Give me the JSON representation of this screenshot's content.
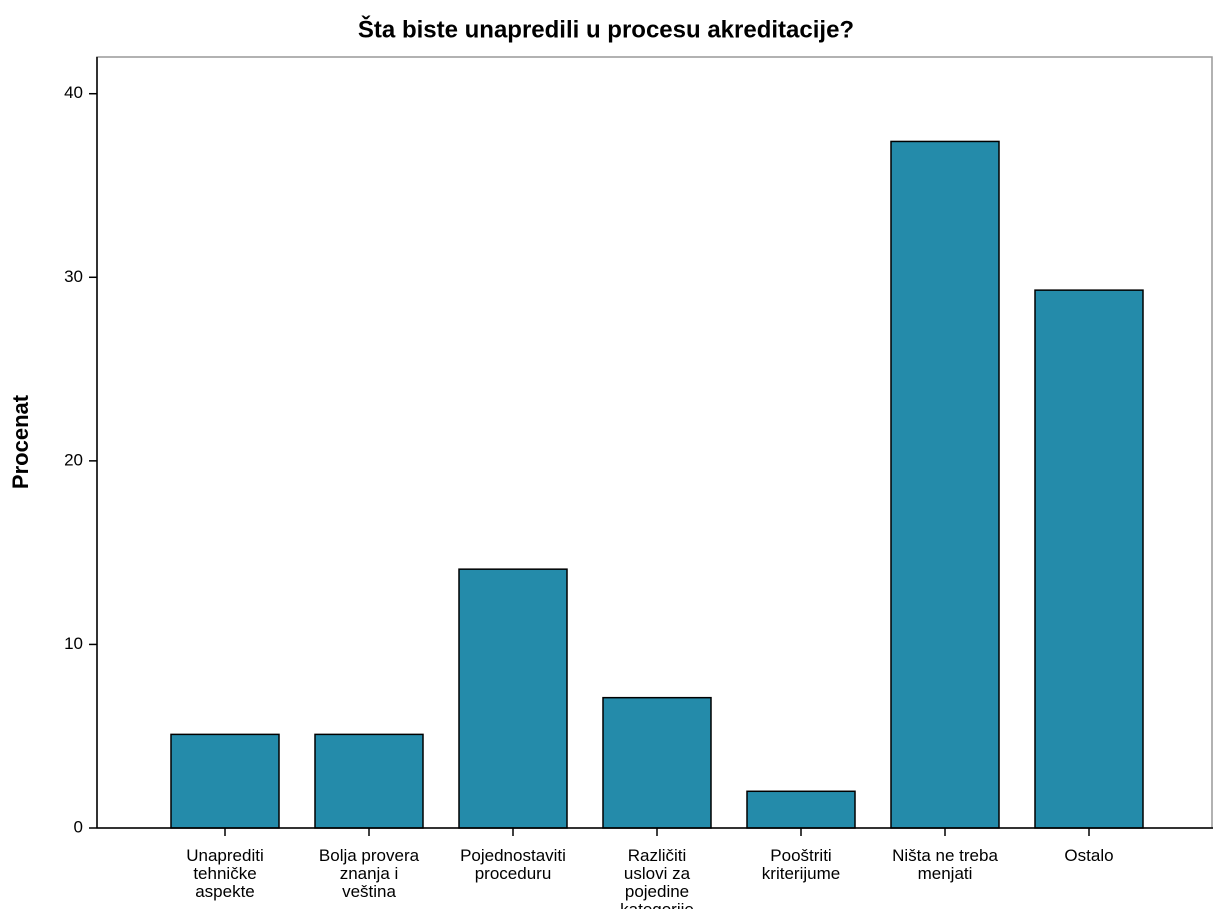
{
  "chart_data": {
    "type": "bar",
    "title": "Šta biste unapredili u procesu akreditacije?",
    "y_label": "Procenat",
    "categories": [
      "Unaprediti tehničke aspekte",
      "Bolja provera znanja i veština",
      "Pojednostaviti proceduru",
      "Različiti uslovi za pojedine kategorije",
      "Pooštriti kriterijume",
      "Ništa ne treba menjati",
      "Ostalo"
    ],
    "values": [
      5.1,
      5.1,
      14.1,
      7.1,
      2.0,
      37.4,
      29.3
    ],
    "color": "#248baa",
    "ylim": [
      0,
      42
    ],
    "yticks": [
      0,
      10,
      20,
      30,
      40
    ],
    "grid": false
  }
}
